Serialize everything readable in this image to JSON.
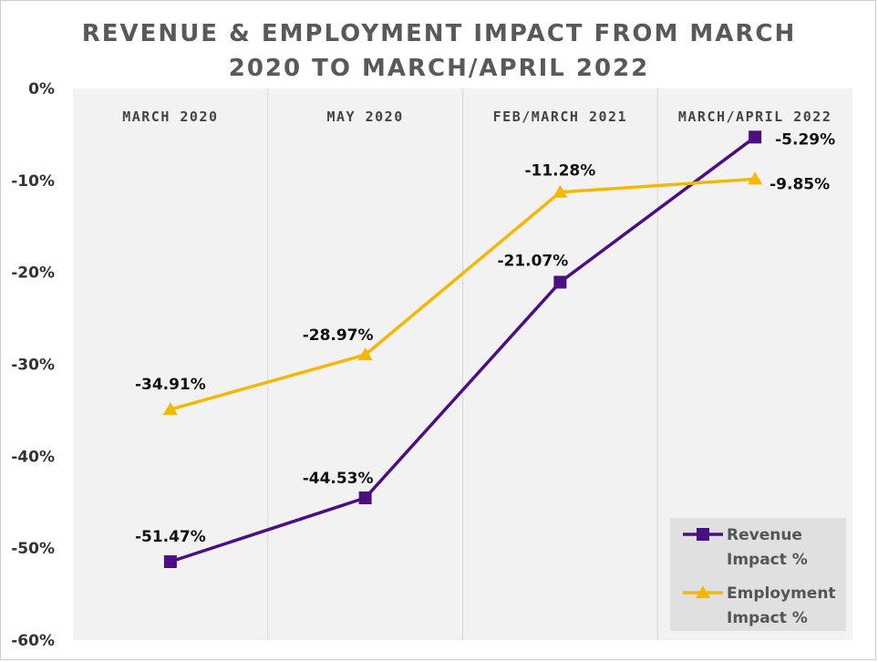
{
  "chart_data": {
    "type": "line",
    "title_line1": "REVENUE & EMPLOYMENT IMPACT FROM MARCH",
    "title_line2": "2020 TO MARCH/APRIL 2022",
    "categories": [
      "MARCH 2020",
      "MAY 2020",
      "FEB/MARCH 2021",
      "MARCH/APRIL 2022"
    ],
    "series": [
      {
        "name_line1": "Revenue",
        "name_line2": "Impact %",
        "color": "#4b0f82",
        "marker": "square",
        "values": [
          -51.47,
          -44.53,
          -21.07,
          -5.29
        ],
        "labels": [
          "-51.47%",
          "-44.53%",
          "-21.07%",
          "-5.29%"
        ]
      },
      {
        "name_line1": "Employment",
        "name_line2": "Impact %",
        "color": "#f5b800",
        "marker": "triangle",
        "values": [
          -34.91,
          -28.97,
          -11.28,
          -9.85
        ],
        "labels": [
          "-34.91%",
          "-28.97%",
          "-11.28%",
          "-9.85%"
        ]
      }
    ],
    "ylim": [
      -60,
      0
    ],
    "yticks": [
      0,
      -10,
      -20,
      -30,
      -40,
      -50,
      -60
    ],
    "ytick_labels": [
      "0%",
      "-10%",
      "-20%",
      "-30%",
      "-40%",
      "-50%",
      "-60%"
    ],
    "grid": "vertical category bands",
    "legend_position": "bottom-right"
  }
}
